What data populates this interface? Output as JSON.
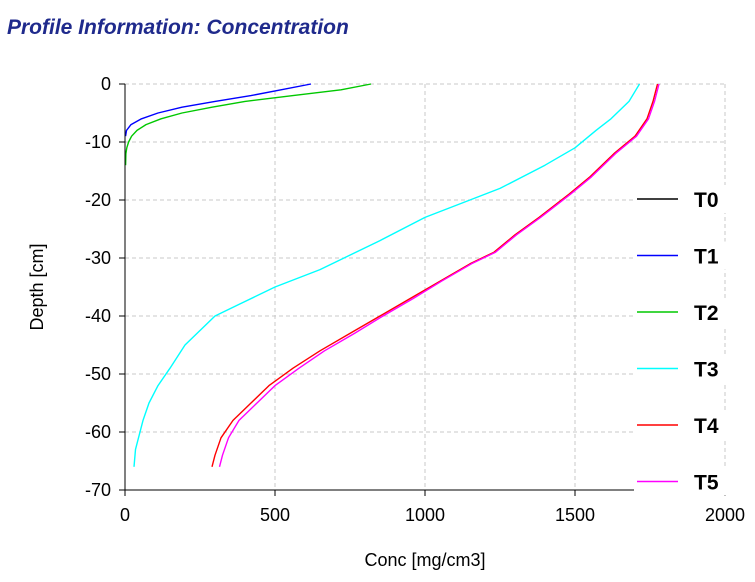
{
  "title": "Profile Information:  Concentration",
  "chart_data": {
    "type": "line",
    "title": "Profile Information:  Concentration",
    "xlabel": "Conc [mg/cm3]",
    "ylabel": "Depth [cm]",
    "xlim": [
      0,
      2000
    ],
    "ylim": [
      -70,
      0
    ],
    "xticks": [
      0,
      500,
      1000,
      1500,
      2000
    ],
    "yticks": [
      0,
      -10,
      -20,
      -30,
      -40,
      -50,
      -60,
      -70
    ],
    "grid": true,
    "legend_position": "right",
    "series": [
      {
        "name": "T0",
        "color": "#000000",
        "points": []
      },
      {
        "name": "T1",
        "color": "#0000ff",
        "points": [
          [
            620,
            0
          ],
          [
            520,
            -1
          ],
          [
            420,
            -2
          ],
          [
            300,
            -3
          ],
          [
            190,
            -4
          ],
          [
            110,
            -5
          ],
          [
            55,
            -6
          ],
          [
            20,
            -7
          ],
          [
            5,
            -8
          ],
          [
            2,
            -9
          ]
        ]
      },
      {
        "name": "T2",
        "color": "#00c800",
        "points": [
          [
            820,
            0
          ],
          [
            720,
            -1
          ],
          [
            560,
            -2
          ],
          [
            400,
            -3
          ],
          [
            290,
            -4
          ],
          [
            190,
            -5
          ],
          [
            120,
            -6
          ],
          [
            70,
            -7
          ],
          [
            40,
            -8
          ],
          [
            22,
            -9
          ],
          [
            12,
            -10
          ],
          [
            6,
            -11
          ],
          [
            3,
            -12
          ],
          [
            2,
            -14
          ]
        ]
      },
      {
        "name": "T3",
        "color": "#00ffff",
        "points": [
          [
            1715,
            0
          ],
          [
            1680,
            -3
          ],
          [
            1620,
            -6
          ],
          [
            1570,
            -8
          ],
          [
            1500,
            -11
          ],
          [
            1400,
            -14
          ],
          [
            1250,
            -18
          ],
          [
            1000,
            -23
          ],
          [
            850,
            -27
          ],
          [
            650,
            -32
          ],
          [
            500,
            -35
          ],
          [
            380,
            -38
          ],
          [
            300,
            -40
          ],
          [
            200,
            -45
          ],
          [
            150,
            -49
          ],
          [
            110,
            -52
          ],
          [
            80,
            -55
          ],
          [
            60,
            -58
          ],
          [
            45,
            -61
          ],
          [
            35,
            -63
          ],
          [
            30,
            -66
          ]
        ]
      },
      {
        "name": "T4",
        "color": "#ff0000",
        "points": [
          [
            1775,
            0
          ],
          [
            1760,
            -3
          ],
          [
            1740,
            -6
          ],
          [
            1700,
            -9
          ],
          [
            1630,
            -12
          ],
          [
            1550,
            -16
          ],
          [
            1480,
            -19
          ],
          [
            1380,
            -23
          ],
          [
            1300,
            -26
          ],
          [
            1230,
            -29
          ],
          [
            1150,
            -31
          ],
          [
            1050,
            -34
          ],
          [
            950,
            -37
          ],
          [
            850,
            -40
          ],
          [
            750,
            -43
          ],
          [
            650,
            -46
          ],
          [
            560,
            -49
          ],
          [
            480,
            -52
          ],
          [
            420,
            -55
          ],
          [
            360,
            -58
          ],
          [
            320,
            -61
          ],
          [
            300,
            -64
          ],
          [
            290,
            -66
          ]
        ]
      },
      {
        "name": "T5",
        "color": "#ff00ff",
        "points": [
          [
            1780,
            0
          ],
          [
            1765,
            -3
          ],
          [
            1745,
            -6
          ],
          [
            1705,
            -9
          ],
          [
            1635,
            -12
          ],
          [
            1555,
            -16
          ],
          [
            1485,
            -19
          ],
          [
            1385,
            -23
          ],
          [
            1305,
            -26
          ],
          [
            1235,
            -29
          ],
          [
            1155,
            -31
          ],
          [
            1055,
            -34
          ],
          [
            960,
            -37
          ],
          [
            860,
            -40
          ],
          [
            765,
            -43
          ],
          [
            665,
            -46
          ],
          [
            580,
            -49
          ],
          [
            500,
            -52
          ],
          [
            440,
            -55
          ],
          [
            380,
            -58
          ],
          [
            345,
            -61
          ],
          [
            325,
            -64
          ],
          [
            315,
            -66
          ]
        ]
      }
    ]
  }
}
